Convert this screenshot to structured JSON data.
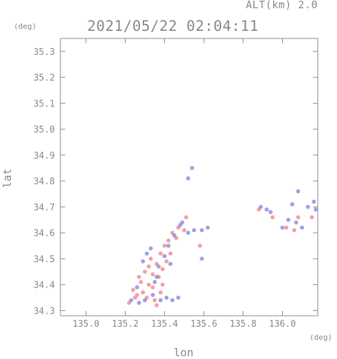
{
  "header": {
    "altitude_label": "ALT(km) 2.0",
    "timestamp": "2021/05/22 02:04:11"
  },
  "chart_data": {
    "type": "scatter",
    "title": "2021/05/22 02:04:11",
    "xlabel": "lon",
    "ylabel": "lat",
    "x_unit": "(deg)",
    "y_unit": "(deg)",
    "xlim": [
      134.87,
      136.18
    ],
    "ylim": [
      34.28,
      35.35
    ],
    "x_ticks": [
      "135.0",
      "135.2",
      "135.4",
      "135.6",
      "135.8",
      "136.0"
    ],
    "x_tick_values": [
      135.0,
      135.2,
      135.4,
      135.6,
      135.8,
      136.0
    ],
    "y_ticks": [
      "34.3",
      "34.4",
      "34.5",
      "34.6",
      "34.7",
      "34.8",
      "34.9",
      "35.0",
      "35.1",
      "35.2",
      "35.3"
    ],
    "y_tick_values": [
      34.3,
      34.4,
      34.5,
      34.6,
      34.7,
      34.8,
      34.9,
      35.0,
      35.1,
      35.2,
      35.3
    ],
    "grid": false,
    "colors": {
      "positive": "#f08080",
      "negative": "#8080e0",
      "axis": "#888888"
    },
    "series": [
      {
        "color": "#f08080",
        "points": [
          [
            135.22,
            34.33
          ],
          [
            135.24,
            34.38
          ],
          [
            135.26,
            34.36
          ],
          [
            135.29,
            34.37
          ],
          [
            135.32,
            34.4
          ],
          [
            135.34,
            34.44
          ],
          [
            135.36,
            34.48
          ],
          [
            135.38,
            34.52
          ],
          [
            135.4,
            34.55
          ],
          [
            135.42,
            34.57
          ],
          [
            135.31,
            34.35
          ],
          [
            135.35,
            34.34
          ],
          [
            135.38,
            34.37
          ],
          [
            135.3,
            34.45
          ],
          [
            135.37,
            34.43
          ],
          [
            135.33,
            34.5
          ],
          [
            135.41,
            34.49
          ],
          [
            135.44,
            34.6
          ],
          [
            135.47,
            34.62
          ],
          [
            135.5,
            34.61
          ],
          [
            135.58,
            34.55
          ],
          [
            135.34,
            34.39
          ],
          [
            135.28,
            34.41
          ],
          [
            135.39,
            34.46
          ],
          [
            135.36,
            34.32
          ],
          [
            135.25,
            34.35
          ],
          [
            135.43,
            34.52
          ],
          [
            135.46,
            34.58
          ],
          [
            135.51,
            34.66
          ],
          [
            135.39,
            34.4
          ],
          [
            135.95,
            34.66
          ],
          [
            136.02,
            34.62
          ],
          [
            136.06,
            34.61
          ],
          [
            136.08,
            34.66
          ],
          [
            136.15,
            34.66
          ],
          [
            135.88,
            34.69
          ],
          [
            135.32,
            34.47
          ],
          [
            135.27,
            34.43
          ]
        ]
      },
      {
        "color": "#8080e0",
        "points": [
          [
            135.23,
            34.34
          ],
          [
            135.27,
            34.33
          ],
          [
            135.3,
            34.34
          ],
          [
            135.34,
            34.36
          ],
          [
            135.38,
            34.34
          ],
          [
            135.41,
            34.35
          ],
          [
            135.44,
            34.34
          ],
          [
            135.47,
            34.35
          ],
          [
            135.35,
            34.41
          ],
          [
            135.37,
            34.47
          ],
          [
            135.4,
            34.51
          ],
          [
            135.42,
            34.55
          ],
          [
            135.45,
            34.59
          ],
          [
            135.48,
            34.63
          ],
          [
            135.52,
            34.6
          ],
          [
            135.55,
            34.61
          ],
          [
            135.59,
            34.61
          ],
          [
            135.62,
            34.62
          ],
          [
            135.59,
            34.5
          ],
          [
            135.52,
            34.81
          ],
          [
            135.54,
            34.85
          ],
          [
            135.49,
            34.64
          ],
          [
            135.31,
            34.52
          ],
          [
            135.33,
            34.54
          ],
          [
            135.89,
            34.7
          ],
          [
            135.92,
            34.69
          ],
          [
            135.94,
            34.68
          ],
          [
            136.0,
            34.62
          ],
          [
            136.03,
            34.65
          ],
          [
            136.07,
            34.64
          ],
          [
            136.1,
            34.62
          ],
          [
            136.13,
            34.7
          ],
          [
            136.16,
            34.72
          ],
          [
            136.17,
            34.69
          ],
          [
            136.08,
            34.76
          ],
          [
            136.05,
            34.71
          ],
          [
            135.26,
            34.39
          ],
          [
            135.29,
            34.49
          ],
          [
            135.36,
            34.43
          ],
          [
            135.43,
            34.48
          ]
        ]
      }
    ]
  }
}
